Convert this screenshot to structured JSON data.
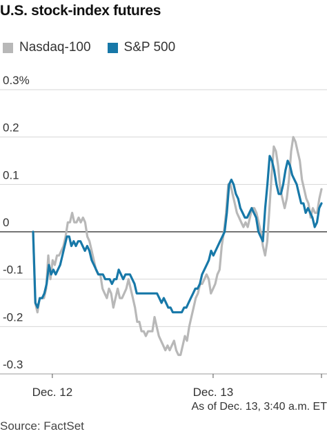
{
  "title": "U.S. stock-index futures",
  "legend": [
    {
      "name": "Nasdaq-100",
      "color": "#b8b8b8"
    },
    {
      "name": "S&P 500",
      "color": "#1778a8"
    }
  ],
  "footnote": "As of Dec. 13, 3:40 a.m. ET",
  "source": "Source: FactSet",
  "chart_data": {
    "type": "line",
    "title": "U.S. stock-index futures",
    "ylabel": "",
    "xlabel": "",
    "ylim": [
      -0.3,
      0.3
    ],
    "y_ticks": [
      {
        "value": 0.3,
        "label": "0.3%"
      },
      {
        "value": 0.2,
        "label": "0.2"
      },
      {
        "value": 0.1,
        "label": "0.1"
      },
      {
        "value": 0,
        "label": "0"
      },
      {
        "value": -0.1,
        "label": "-0.1"
      },
      {
        "value": -0.2,
        "label": "-0.2"
      },
      {
        "value": -0.3,
        "label": "-0.3"
      }
    ],
    "x_ticks": [
      {
        "index": 11,
        "label": "Dec. 12"
      },
      {
        "index": 103,
        "label": "Dec. 13"
      },
      {
        "index": 165,
        "label": ""
      }
    ],
    "grid": true,
    "legend_position": "top-left",
    "series": [
      {
        "name": "Nasdaq-100",
        "color": "#b8b8b8",
        "values": [
          0.0,
          -0.15,
          -0.17,
          -0.14,
          -0.14,
          -0.14,
          -0.12,
          -0.05,
          -0.1,
          -0.06,
          -0.07,
          -0.05,
          -0.05,
          -0.04,
          -0.03,
          -0.01,
          0.02,
          0.02,
          0.04,
          0.02,
          0.02,
          0.03,
          0.02,
          0.03,
          0.02,
          -0.01,
          -0.02,
          -0.04,
          -0.06,
          -0.08,
          -0.09,
          -0.09,
          -0.12,
          -0.13,
          -0.14,
          -0.12,
          -0.13,
          -0.16,
          -0.14,
          -0.12,
          -0.14,
          -0.14,
          -0.13,
          -0.12,
          -0.1,
          -0.12,
          -0.14,
          -0.16,
          -0.19,
          -0.19,
          -0.21,
          -0.21,
          -0.22,
          -0.21,
          -0.21,
          -0.21,
          -0.18,
          -0.2,
          -0.22,
          -0.23,
          -0.24,
          -0.25,
          -0.24,
          -0.25,
          -0.24,
          -0.23,
          -0.25,
          -0.26,
          -0.26,
          -0.24,
          -0.22,
          -0.23,
          -0.2,
          -0.18,
          -0.16,
          -0.14,
          -0.13,
          -0.11,
          -0.11,
          -0.1,
          -0.09,
          -0.1,
          -0.13,
          -0.12,
          -0.11,
          -0.09,
          -0.08,
          -0.03,
          0.0,
          0.04,
          0.1,
          0.1,
          0.08,
          0.06,
          0.04,
          0.03,
          0.02,
          0.01,
          0.02,
          0.01,
          0.03,
          0.05,
          0.05,
          0.04,
          0.02,
          0.0,
          -0.03,
          -0.05,
          -0.02,
          0.05,
          0.12,
          0.18,
          0.17,
          0.14,
          0.09,
          0.07,
          0.05,
          0.07,
          0.11,
          0.17,
          0.2,
          0.19,
          0.17,
          0.15,
          0.11,
          0.09,
          0.07,
          0.06,
          0.03,
          0.05,
          0.04,
          0.04,
          0.07,
          0.09
        ],
        "x_index_end": 165
      },
      {
        "name": "S&P 500",
        "color": "#1778a8",
        "values": [
          0.0,
          -0.15,
          -0.16,
          -0.14,
          -0.14,
          -0.13,
          -0.11,
          -0.07,
          -0.09,
          -0.08,
          -0.09,
          -0.08,
          -0.07,
          -0.05,
          -0.03,
          -0.01,
          -0.01,
          -0.03,
          -0.02,
          -0.03,
          -0.02,
          -0.02,
          -0.03,
          -0.04,
          -0.03,
          -0.04,
          -0.06,
          -0.07,
          -0.08,
          -0.09,
          -0.09,
          -0.09,
          -0.1,
          -0.1,
          -0.1,
          -0.11,
          -0.1,
          -0.1,
          -0.08,
          -0.09,
          -0.1,
          -0.09,
          -0.09,
          -0.09,
          -0.1,
          -0.11,
          -0.13,
          -0.13,
          -0.13,
          -0.13,
          -0.13,
          -0.13,
          -0.13,
          -0.13,
          -0.13,
          -0.13,
          -0.14,
          -0.15,
          -0.14,
          -0.15,
          -0.16,
          -0.16,
          -0.17,
          -0.17,
          -0.17,
          -0.17,
          -0.17,
          -0.16,
          -0.16,
          -0.15,
          -0.14,
          -0.13,
          -0.12,
          -0.12,
          -0.11,
          -0.09,
          -0.08,
          -0.07,
          -0.06,
          -0.04,
          -0.05,
          -0.04,
          -0.03,
          -0.02,
          -0.01,
          0.0,
          0.04,
          0.1,
          0.11,
          0.1,
          0.08,
          0.07,
          0.05,
          0.04,
          0.03,
          0.03,
          0.04,
          0.05,
          0.04,
          0.03,
          0.0,
          -0.01,
          -0.02,
          0.05,
          0.1,
          0.16,
          0.15,
          0.13,
          0.1,
          0.08,
          0.08,
          0.1,
          0.13,
          0.15,
          0.14,
          0.12,
          0.11,
          0.1,
          0.08,
          0.06,
          0.06,
          0.04,
          0.05,
          0.04,
          0.03,
          0.01,
          0.02,
          0.05,
          0.06
        ],
        "x_index_end": 165
      }
    ]
  }
}
